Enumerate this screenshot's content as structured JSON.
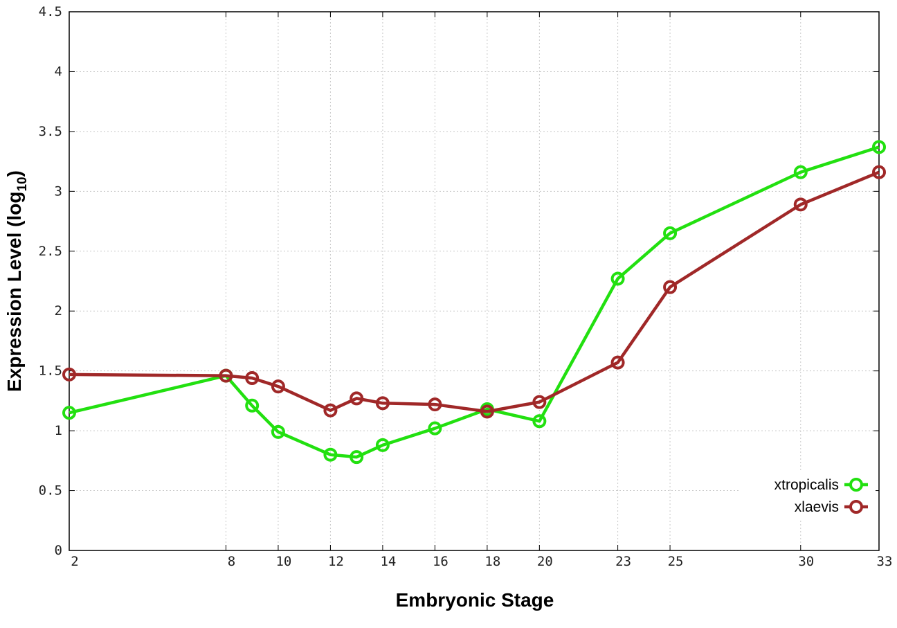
{
  "chart_data": {
    "type": "line",
    "xlabel": "Embryonic Stage",
    "ylabel_main": "Expression Level (log",
    "ylabel_sub": "10",
    "ylabel_close": ")",
    "x": [
      2,
      8,
      9,
      10,
      12,
      13,
      14,
      16,
      18,
      20,
      23,
      25,
      30,
      33
    ],
    "xticks": [
      2,
      8,
      10,
      12,
      14,
      16,
      18,
      20,
      23,
      25,
      30,
      33
    ],
    "xtick_labels": [
      "2",
      "8",
      "10",
      "12",
      "14",
      "16",
      "18",
      "20",
      "23",
      "25",
      "30",
      "33"
    ],
    "yticks": [
      0,
      0.5,
      1,
      1.5,
      2,
      2.5,
      3,
      3.5,
      4,
      4.5
    ],
    "ytick_labels": [
      "0",
      "0.5",
      "1",
      "1.5",
      "2",
      "2.5",
      "3",
      "3.5",
      "4",
      "4.5"
    ],
    "ylim": [
      0,
      4.5
    ],
    "grid": true,
    "legend_position": "bottom-right",
    "series": [
      {
        "name": "xtropicalis",
        "color": "#22e010",
        "values": [
          1.15,
          1.46,
          1.21,
          0.99,
          0.8,
          0.78,
          0.88,
          1.02,
          1.18,
          1.08,
          2.27,
          2.65,
          3.16,
          3.37
        ]
      },
      {
        "name": "xlaevis",
        "color": "#a02828",
        "values": [
          1.47,
          1.46,
          1.44,
          1.37,
          1.17,
          1.27,
          1.23,
          1.22,
          1.16,
          1.24,
          1.57,
          2.2,
          2.89,
          3.16
        ]
      }
    ]
  }
}
